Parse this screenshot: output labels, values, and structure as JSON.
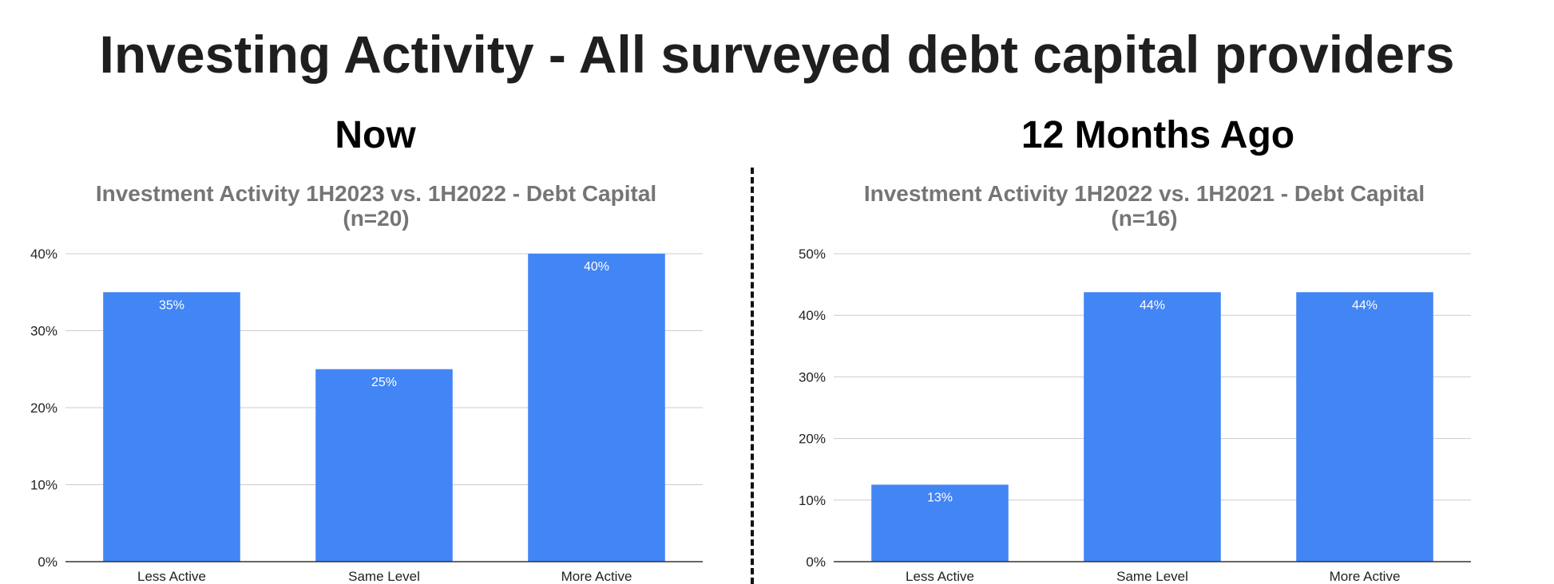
{
  "header": {
    "title": "Investing Activity - All surveyed debt capital providers"
  },
  "panels": [
    {
      "heading": "Now"
    },
    {
      "heading": "12 Months Ago"
    }
  ],
  "chart_data": [
    {
      "type": "bar",
      "title": "Investment Activity 1H2023 vs. 1H2022 - Debt Capital",
      "subtitle": "(n=20)",
      "categories": [
        "Less Active",
        "Same Level",
        "More Active"
      ],
      "values": [
        35,
        25,
        40
      ],
      "data_labels": [
        "35%",
        "25%",
        "40%"
      ],
      "yticks": [
        "0%",
        "10%",
        "20%",
        "30%",
        "40%"
      ],
      "ylim": [
        0,
        40
      ],
      "xlabel": "",
      "ylabel": "",
      "grid": true,
      "bar_color": "#4285f4"
    },
    {
      "type": "bar",
      "title": "Investment Activity 1H2022 vs. 1H2021 - Debt Capital",
      "subtitle": "(n=16)",
      "categories": [
        "Less Active",
        "Same Level",
        "More Active"
      ],
      "values": [
        12.5,
        43.75,
        43.75
      ],
      "data_labels": [
        "13%",
        "44%",
        "44%"
      ],
      "yticks": [
        "0%",
        "10%",
        "20%",
        "30%",
        "40%",
        "50%"
      ],
      "ylim": [
        0,
        50
      ],
      "xlabel": "",
      "ylabel": "",
      "grid": true,
      "bar_color": "#4285f4"
    }
  ]
}
